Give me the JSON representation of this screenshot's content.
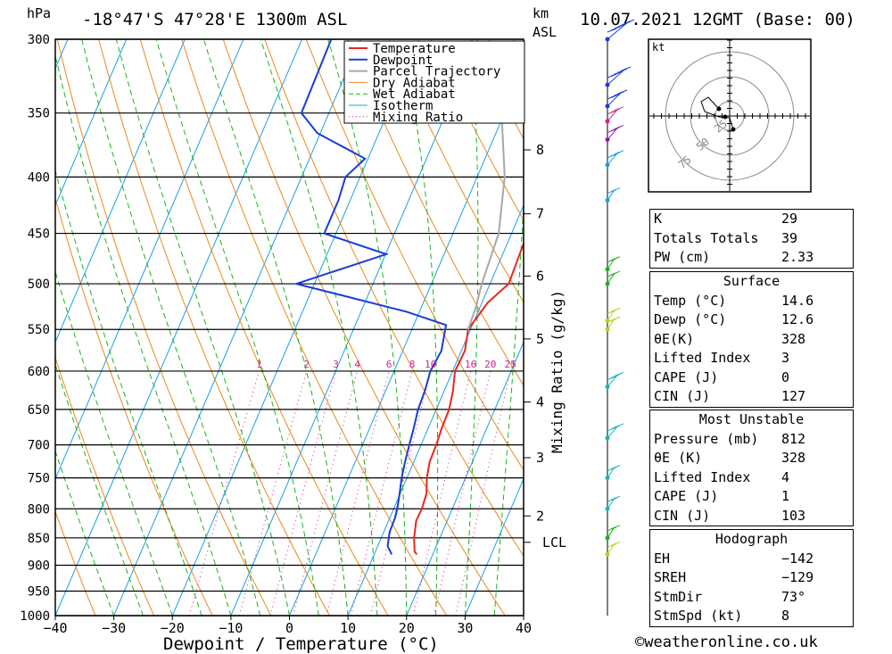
{
  "header": {
    "hpa_label": "hPa",
    "location": "-18°47'S  47°28'E  1300m  ASL",
    "km_label": "km",
    "asl_label": "ASL",
    "datetime": "10.07.2021  12GMT  (Base: 00)"
  },
  "colors": {
    "temperature": "#e8281e",
    "dewpoint": "#1a3cd8",
    "parcel": "#a8a8a8",
    "dry_adiabat": "#e88a1e",
    "wet_adiabat": "#19b419",
    "isotherm": "#19a0e8",
    "mixing_ratio": "#d21e8c"
  },
  "chart_data": {
    "type": "line",
    "xlabel": "Dewpoint / Temperature (°C)",
    "ylabel": "",
    "y_axis_secondary_label": "Mixing Ratio (g/kg)",
    "xlim": [
      -40,
      40
    ],
    "ylim": [
      1000,
      300
    ],
    "x_ticks": [
      "−40",
      "−30",
      "−20",
      "−10",
      "0",
      "10",
      "20",
      "30",
      "40"
    ],
    "pressure_levels": [
      300,
      350,
      400,
      450,
      500,
      550,
      600,
      650,
      700,
      750,
      800,
      850,
      900,
      950,
      1000
    ],
    "km_levels": [
      {
        "km": "8",
        "p": 378
      },
      {
        "km": "7",
        "p": 432
      },
      {
        "km": "6",
        "p": 492
      },
      {
        "km": "5",
        "p": 561
      },
      {
        "km": "4",
        "p": 640
      },
      {
        "km": "3",
        "p": 719
      },
      {
        "km": "2",
        "p": 812
      },
      {
        "km": "LCL",
        "p": 858
      }
    ],
    "mixing_ratio_labels": [
      "1",
      "2",
      "3",
      "4",
      "6",
      "8",
      "10",
      "16",
      "20",
      "25"
    ],
    "legend": [
      "Temperature",
      "Dewpoint",
      "Parcel Trajectory",
      "Dry Adiabat",
      "Wet Adiabat",
      "Isotherm",
      "Mixing Ratio"
    ],
    "legend_position": "top-right",
    "series": [
      {
        "name": "Temperature",
        "points": [
          [
            10.0,
            300
          ],
          [
            11.2,
            350
          ],
          [
            11.5,
            365
          ],
          [
            8.7,
            380
          ],
          [
            8.5,
            400
          ],
          [
            10.7,
            425
          ],
          [
            12.7,
            450
          ],
          [
            12.9,
            470
          ],
          [
            13.2,
            500
          ],
          [
            11.0,
            520
          ],
          [
            9.6,
            550
          ],
          [
            10.6,
            575
          ],
          [
            10.4,
            600
          ],
          [
            11.5,
            625
          ],
          [
            12.2,
            650
          ],
          [
            12.3,
            675
          ],
          [
            12.6,
            700
          ],
          [
            12.7,
            725
          ],
          [
            13.4,
            750
          ],
          [
            14.5,
            775
          ],
          [
            14.8,
            800
          ],
          [
            14.7,
            820
          ],
          [
            15.6,
            850
          ],
          [
            16.7,
            875
          ],
          [
            17.3,
            880
          ]
        ]
      },
      {
        "name": "Dewpoint",
        "points": [
          [
            -35.0,
            300
          ],
          [
            -34.7,
            350
          ],
          [
            -30.5,
            365
          ],
          [
            -20.5,
            385
          ],
          [
            -22.5,
            400
          ],
          [
            -22.0,
            420
          ],
          [
            -22.0,
            450
          ],
          [
            -9.9,
            470
          ],
          [
            -23.1,
            500
          ],
          [
            -2.2,
            530
          ],
          [
            5.5,
            545
          ],
          [
            6.6,
            575
          ],
          [
            6.2,
            600
          ],
          [
            6.7,
            625
          ],
          [
            6.9,
            650
          ],
          [
            7.5,
            675
          ],
          [
            8.0,
            700
          ],
          [
            8.5,
            725
          ],
          [
            9.1,
            750
          ],
          [
            9.9,
            775
          ],
          [
            10.6,
            800
          ],
          [
            10.9,
            815
          ],
          [
            11.0,
            840
          ],
          [
            11.7,
            865
          ],
          [
            13.0,
            880
          ]
        ]
      },
      {
        "name": "Parcel Trajectory",
        "points": [
          [
            -8.0,
            300
          ],
          [
            -0.5,
            350
          ],
          [
            4.7,
            400
          ],
          [
            7.8,
            450
          ],
          [
            8.6,
            500
          ],
          [
            9.3,
            525
          ],
          [
            9.6,
            550
          ]
        ]
      }
    ]
  },
  "hodograph": {
    "unit": "kt",
    "ring_labels": [
      "25",
      "50",
      "75"
    ]
  },
  "indices": {
    "rows": [
      {
        "label": "K",
        "value": "29"
      },
      {
        "label": "Totals Totals",
        "value": "39"
      },
      {
        "label": "PW (cm)",
        "value": "2.33"
      }
    ],
    "surface": {
      "title": "Surface",
      "rows": [
        {
          "label": "Temp (°C)",
          "value": "14.6"
        },
        {
          "label": "Dewp (°C)",
          "value": "12.6"
        },
        {
          "label": "θE(K)",
          "value": "328"
        },
        {
          "label": "Lifted Index",
          "value": "3"
        },
        {
          "label": "CAPE (J)",
          "value": "0"
        },
        {
          "label": "CIN (J)",
          "value": "127"
        }
      ]
    },
    "most_unstable": {
      "title": "Most Unstable",
      "rows": [
        {
          "label": "Pressure (mb)",
          "value": "812"
        },
        {
          "label": "θE (K)",
          "value": "328"
        },
        {
          "label": "Lifted Index",
          "value": "4"
        },
        {
          "label": "CAPE (J)",
          "value": "1"
        },
        {
          "label": "CIN (J)",
          "value": "103"
        }
      ]
    },
    "hodograph_table": {
      "title": "Hodograph",
      "rows": [
        {
          "label": "EH",
          "value": "−142"
        },
        {
          "label": "SREH",
          "value": "−129"
        },
        {
          "label": "StmDir",
          "value": "73°"
        },
        {
          "label": "StmSpd (kt)",
          "value": "8"
        }
      ]
    }
  },
  "footer": {
    "copyright": "©weatheronline.co.uk"
  }
}
